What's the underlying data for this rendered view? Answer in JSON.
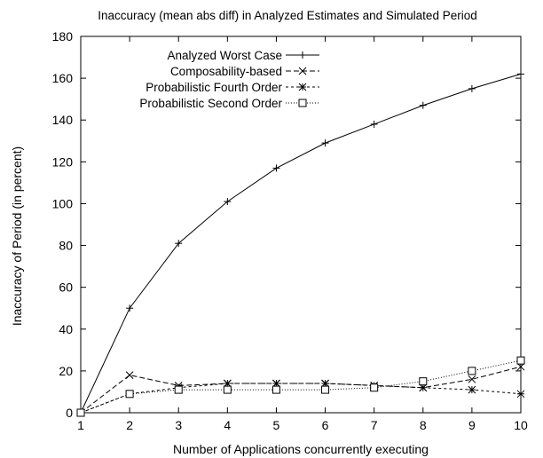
{
  "chart_data": {
    "type": "line",
    "title": "Inaccuracy (mean abs diff) in Analyzed Estimates and Simulated Period",
    "xlabel": "Number of Applications concurrently executing",
    "ylabel": "Inaccuracy of Period (in percent)",
    "xlim": [
      1,
      10
    ],
    "ylim": [
      0,
      180
    ],
    "x_ticks": [
      1,
      2,
      3,
      4,
      5,
      6,
      7,
      8,
      9,
      10
    ],
    "y_ticks": [
      0,
      20,
      40,
      60,
      80,
      100,
      120,
      140,
      160,
      180
    ],
    "grid": false,
    "legend_position": "top-left",
    "x": [
      1,
      2,
      3,
      4,
      5,
      6,
      7,
      8,
      9,
      10
    ],
    "series": [
      {
        "name": "Analyzed Worst Case",
        "marker": "plus",
        "dash": "solid",
        "values": [
          0,
          50,
          81,
          101,
          117,
          129,
          138,
          147,
          155,
          162
        ]
      },
      {
        "name": "Composability-based",
        "marker": "cross",
        "dash": "dashed",
        "values": [
          0,
          18,
          13,
          14,
          14,
          14,
          13,
          12,
          16,
          22
        ]
      },
      {
        "name": "Probabilistic Fourth Order",
        "marker": "star",
        "dash": "dotted",
        "values": [
          0,
          9,
          12,
          14,
          14,
          14,
          13,
          12,
          11,
          9
        ]
      },
      {
        "name": "Probabilistic Second Order",
        "marker": "square",
        "dash": "fine-dotted",
        "values": [
          0,
          9,
          11,
          11,
          11,
          11,
          12,
          15,
          20,
          25
        ]
      }
    ]
  }
}
